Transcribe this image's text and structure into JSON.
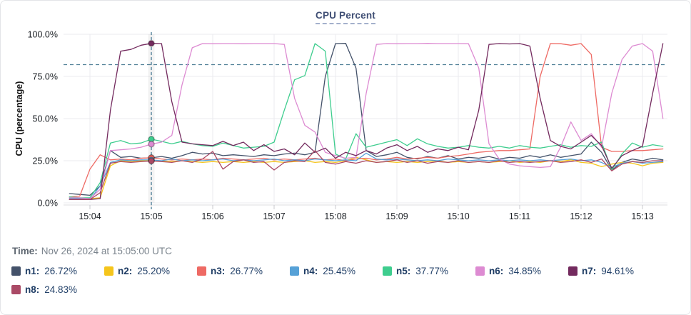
{
  "card": {
    "title": "CPU Percent"
  },
  "time_row": {
    "label": "Time:",
    "value": "Nov 26, 2024 at 15:05:00 UTC"
  },
  "legend": {
    "items": [
      {
        "id": "n1",
        "label": "n1:",
        "value": "26.72%",
        "color": "#44526a"
      },
      {
        "id": "n2",
        "label": "n2:",
        "value": "25.20%",
        "color": "#f5c51c"
      },
      {
        "id": "n3",
        "label": "n3:",
        "value": "26.77%",
        "color": "#ee6a64"
      },
      {
        "id": "n4",
        "label": "n4:",
        "value": "25.45%",
        "color": "#56a1d7"
      },
      {
        "id": "n5",
        "label": "n5:",
        "value": "37.77%",
        "color": "#3ecd8e"
      },
      {
        "id": "n6",
        "label": "n6:",
        "value": "34.85%",
        "color": "#dd8bd2"
      },
      {
        "id": "n7",
        "label": "n7:",
        "value": "94.61%",
        "color": "#732a5e"
      },
      {
        "id": "n8",
        "label": "n8:",
        "value": "24.83%",
        "color": "#aa4a66"
      }
    ]
  },
  "chart_data": {
    "type": "line",
    "title": "CPU Percent",
    "xlabel": "",
    "ylabel": "CPU (percentage)",
    "ylim": [
      0,
      100
    ],
    "grid": true,
    "legend_position": "bottom",
    "y_ticks": [
      {
        "v": 0,
        "label": "0.0%"
      },
      {
        "v": 25,
        "label": "25.0%"
      },
      {
        "v": 50,
        "label": "50.0%"
      },
      {
        "v": 75,
        "label": "75.0%"
      },
      {
        "v": 100,
        "label": "100.0%"
      }
    ],
    "x_ticks": [
      "15:04",
      "15:05",
      "15:06",
      "15:07",
      "15:08",
      "15:09",
      "15:10",
      "15:11",
      "15:12",
      "15:13"
    ],
    "sample_interval_seconds": 10,
    "start_offset_seconds": -20,
    "sample_start_time": "15:03:40",
    "threshold_value": 82,
    "crosshair": {
      "time": "15:05:00",
      "index": 8
    },
    "series": [
      {
        "name": "n1",
        "color": "#44526a",
        "marker_value": 26.72,
        "values": [
          5.5,
          5,
          4.5,
          10,
          31,
          27,
          27.5,
          26.5,
          26.72,
          27.5,
          26.5,
          28,
          30,
          29,
          29.5,
          28,
          28.5,
          28,
          27.5,
          28.5,
          28,
          29,
          29.5,
          28.5,
          30,
          75,
          94.5,
          94.6,
          80,
          31,
          27.5,
          28.5,
          30,
          27,
          26,
          27.5,
          26.5,
          28,
          26,
          27,
          26.5,
          27.5,
          26,
          27,
          26.5,
          28,
          27,
          28.5,
          27,
          28,
          29,
          36,
          30,
          19.5,
          24,
          26,
          25,
          26.5,
          25.5
        ]
      },
      {
        "name": "n2",
        "color": "#f5c51c",
        "marker_value": 25.2,
        "values": [
          3,
          2.8,
          2.5,
          3,
          22,
          25,
          24.5,
          25,
          25.2,
          24.8,
          24.5,
          25,
          24.5,
          24,
          24.5,
          24,
          24.5,
          24,
          24.5,
          24,
          24.5,
          24,
          24.5,
          25,
          24,
          24.5,
          24,
          25,
          27,
          25.5,
          24,
          24.5,
          24,
          24.5,
          24,
          24.5,
          25,
          24,
          24.5,
          24,
          24.5,
          24,
          24.5,
          25,
          24,
          24.5,
          24,
          25,
          24.5,
          25.5,
          24,
          23.5,
          21.5,
          23,
          24,
          23.5,
          22,
          23.5,
          24
        ]
      },
      {
        "name": "n3",
        "color": "#ee6a64",
        "marker_value": 26.77,
        "values": [
          3.5,
          4,
          20,
          28.5,
          25.5,
          26,
          25.5,
          26.5,
          26.77,
          26,
          25.5,
          26,
          25.5,
          26,
          25.5,
          26.5,
          26,
          25.5,
          26,
          26.5,
          25.5,
          26,
          25.5,
          26,
          26.5,
          25.5,
          26,
          25,
          26,
          26.5,
          25.5,
          26,
          27,
          26,
          26.5,
          27,
          26.5,
          27.5,
          28,
          29,
          30,
          30.5,
          31,
          31,
          31.5,
          32,
          75,
          94.5,
          94.4,
          93.5,
          94.5,
          88,
          33,
          30.5,
          30.5,
          31,
          31,
          31.5,
          32
        ]
      },
      {
        "name": "n4",
        "color": "#56a1d7",
        "marker_value": 25.45,
        "values": [
          2.5,
          2.5,
          2,
          10,
          24,
          25.5,
          25,
          25.5,
          25.45,
          25,
          26,
          25,
          25.5,
          25,
          25.5,
          26,
          25,
          25.5,
          25,
          25.5,
          26,
          25,
          25.5,
          25,
          26,
          25.5,
          25,
          25.5,
          25,
          29.5,
          26,
          25.5,
          26,
          25.5,
          25,
          25.5,
          25,
          26,
          25.5,
          25,
          25.5,
          25,
          25.5,
          25,
          25.5,
          25,
          25.5,
          25,
          25.5,
          26,
          25,
          25.5,
          24,
          21,
          23.5,
          24.5,
          23.5,
          24,
          24.5
        ]
      },
      {
        "name": "n5",
        "color": "#3ecd8e",
        "marker_value": 37.77,
        "values": [
          3.5,
          3,
          3,
          12,
          35.5,
          37,
          35,
          35.5,
          37.77,
          36.5,
          35,
          36.5,
          35,
          34,
          33.5,
          35.5,
          34,
          32.5,
          33,
          33.5,
          36,
          55,
          73,
          75.5,
          94.5,
          90,
          29,
          26,
          41,
          33,
          34.5,
          36,
          37.5,
          34,
          38,
          35,
          33.5,
          32.5,
          33,
          34,
          33,
          32.5,
          33.5,
          32.5,
          34,
          33,
          32.5,
          33.5,
          34.5,
          33,
          34,
          33.5,
          36,
          19.5,
          29,
          35.5,
          33,
          34.5,
          33.5
        ]
      },
      {
        "name": "n6",
        "color": "#dd8bd2",
        "marker_value": 34.85,
        "values": [
          3,
          3,
          2.5,
          8,
          31,
          31.5,
          32,
          33,
          34.85,
          36,
          40,
          70,
          92,
          94.5,
          94.4,
          94.5,
          94.5,
          94.4,
          94.5,
          94.5,
          94.5,
          94,
          62,
          46,
          42,
          30,
          28,
          26.5,
          27,
          65,
          94,
          94.5,
          94.4,
          94.5,
          94.5,
          94.6,
          94.5,
          94.5,
          94.5,
          94.4,
          80,
          35,
          26,
          23,
          22,
          21.5,
          21,
          21.5,
          33,
          48,
          37,
          41,
          33,
          65,
          85,
          93,
          94.5,
          90,
          50
        ]
      },
      {
        "name": "n7",
        "color": "#732a5e",
        "marker_value": 94.61,
        "values": [
          2,
          2,
          2,
          2.5,
          55,
          90,
          91,
          93.5,
          94.61,
          94.5,
          60,
          36,
          35,
          34.5,
          34,
          36.5,
          34,
          36,
          31,
          34.5,
          30.5,
          32,
          28.5,
          35.5,
          30,
          32.5,
          26.5,
          30,
          28,
          31,
          29,
          32.5,
          34.5,
          31,
          33.5,
          30,
          32,
          31,
          33,
          31.5,
          55,
          94,
          94.5,
          94.3,
          94.5,
          93,
          62,
          37,
          33.5,
          32,
          36,
          40,
          34,
          20.5,
          28,
          31,
          33.5,
          65,
          94.5
        ]
      },
      {
        "name": "n8",
        "color": "#aa4a66",
        "marker_value": 24.83,
        "values": [
          2,
          2,
          2,
          6,
          23.5,
          24.5,
          24,
          24.5,
          24.83,
          24.5,
          24,
          25,
          24,
          26,
          30.5,
          20,
          24.5,
          25.5,
          24,
          24.5,
          19.5,
          24,
          25,
          24.5,
          31,
          24,
          23,
          24.5,
          23.5,
          25,
          24,
          24.5,
          25.5,
          24,
          25,
          23.5,
          24.5,
          24,
          25,
          24,
          24.5,
          24,
          25,
          24,
          24.5,
          24,
          24.5,
          25,
          24,
          24.5,
          25.5,
          24,
          26,
          19,
          23,
          24.5,
          24,
          25,
          25
        ]
      }
    ]
  }
}
